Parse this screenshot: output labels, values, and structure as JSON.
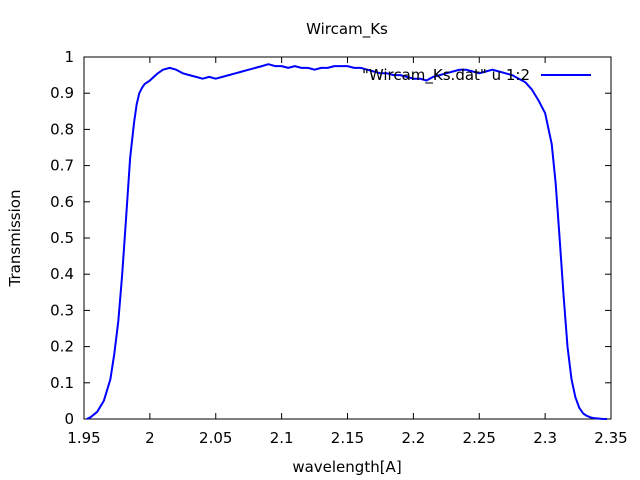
{
  "chart_data": {
    "type": "line",
    "title": "Wircam_Ks",
    "xlabel": "wavelength[A]",
    "ylabel": "Transmission",
    "xlim": [
      1.95,
      2.35
    ],
    "ylim": [
      0,
      1
    ],
    "xticks": [
      "1.95",
      "2",
      "2.05",
      "2.1",
      "2.15",
      "2.2",
      "2.25",
      "2.3",
      "2.35"
    ],
    "yticks": [
      "0",
      "0.1",
      "0.2",
      "0.3",
      "0.4",
      "0.5",
      "0.6",
      "0.7",
      "0.8",
      "0.9",
      "1"
    ],
    "grid": false,
    "legend_position": "top-right",
    "series": [
      {
        "name": "\"Wircam_Ks.dat\" u 1:2",
        "color": "#0000ff",
        "x": [
          1.952,
          1.955,
          1.96,
          1.965,
          1.97,
          1.973,
          1.976,
          1.979,
          1.982,
          1.985,
          1.988,
          1.99,
          1.992,
          1.994,
          1.996,
          1.998,
          2.0,
          2.003,
          2.006,
          2.01,
          2.015,
          2.02,
          2.025,
          2.03,
          2.035,
          2.04,
          2.045,
          2.05,
          2.055,
          2.06,
          2.065,
          2.07,
          2.075,
          2.08,
          2.085,
          2.09,
          2.095,
          2.1,
          2.105,
          2.11,
          2.115,
          2.12,
          2.125,
          2.13,
          2.135,
          2.14,
          2.145,
          2.15,
          2.155,
          2.16,
          2.165,
          2.17,
          2.175,
          2.18,
          2.185,
          2.19,
          2.195,
          2.2,
          2.205,
          2.21,
          2.215,
          2.22,
          2.225,
          2.23,
          2.235,
          2.24,
          2.245,
          2.25,
          2.255,
          2.26,
          2.265,
          2.27,
          2.275,
          2.28,
          2.285,
          2.29,
          2.295,
          2.3,
          2.305,
          2.308,
          2.311,
          2.314,
          2.317,
          2.32,
          2.323,
          2.326,
          2.329,
          2.332,
          2.335,
          2.338,
          2.341,
          2.344,
          2.347
        ],
        "y": [
          0.0,
          0.005,
          0.02,
          0.05,
          0.11,
          0.18,
          0.27,
          0.4,
          0.56,
          0.72,
          0.82,
          0.87,
          0.9,
          0.915,
          0.925,
          0.93,
          0.935,
          0.945,
          0.955,
          0.965,
          0.97,
          0.965,
          0.955,
          0.95,
          0.945,
          0.94,
          0.945,
          0.94,
          0.945,
          0.95,
          0.955,
          0.96,
          0.965,
          0.97,
          0.975,
          0.98,
          0.975,
          0.975,
          0.97,
          0.975,
          0.97,
          0.97,
          0.965,
          0.97,
          0.97,
          0.975,
          0.975,
          0.975,
          0.97,
          0.97,
          0.965,
          0.96,
          0.955,
          0.955,
          0.95,
          0.95,
          0.945,
          0.94,
          0.94,
          0.935,
          0.945,
          0.95,
          0.955,
          0.96,
          0.965,
          0.965,
          0.96,
          0.955,
          0.96,
          0.965,
          0.96,
          0.955,
          0.95,
          0.94,
          0.93,
          0.91,
          0.88,
          0.845,
          0.76,
          0.65,
          0.5,
          0.34,
          0.2,
          0.11,
          0.06,
          0.03,
          0.015,
          0.008,
          0.004,
          0.002,
          0.001,
          0.0,
          0.0
        ]
      }
    ]
  }
}
